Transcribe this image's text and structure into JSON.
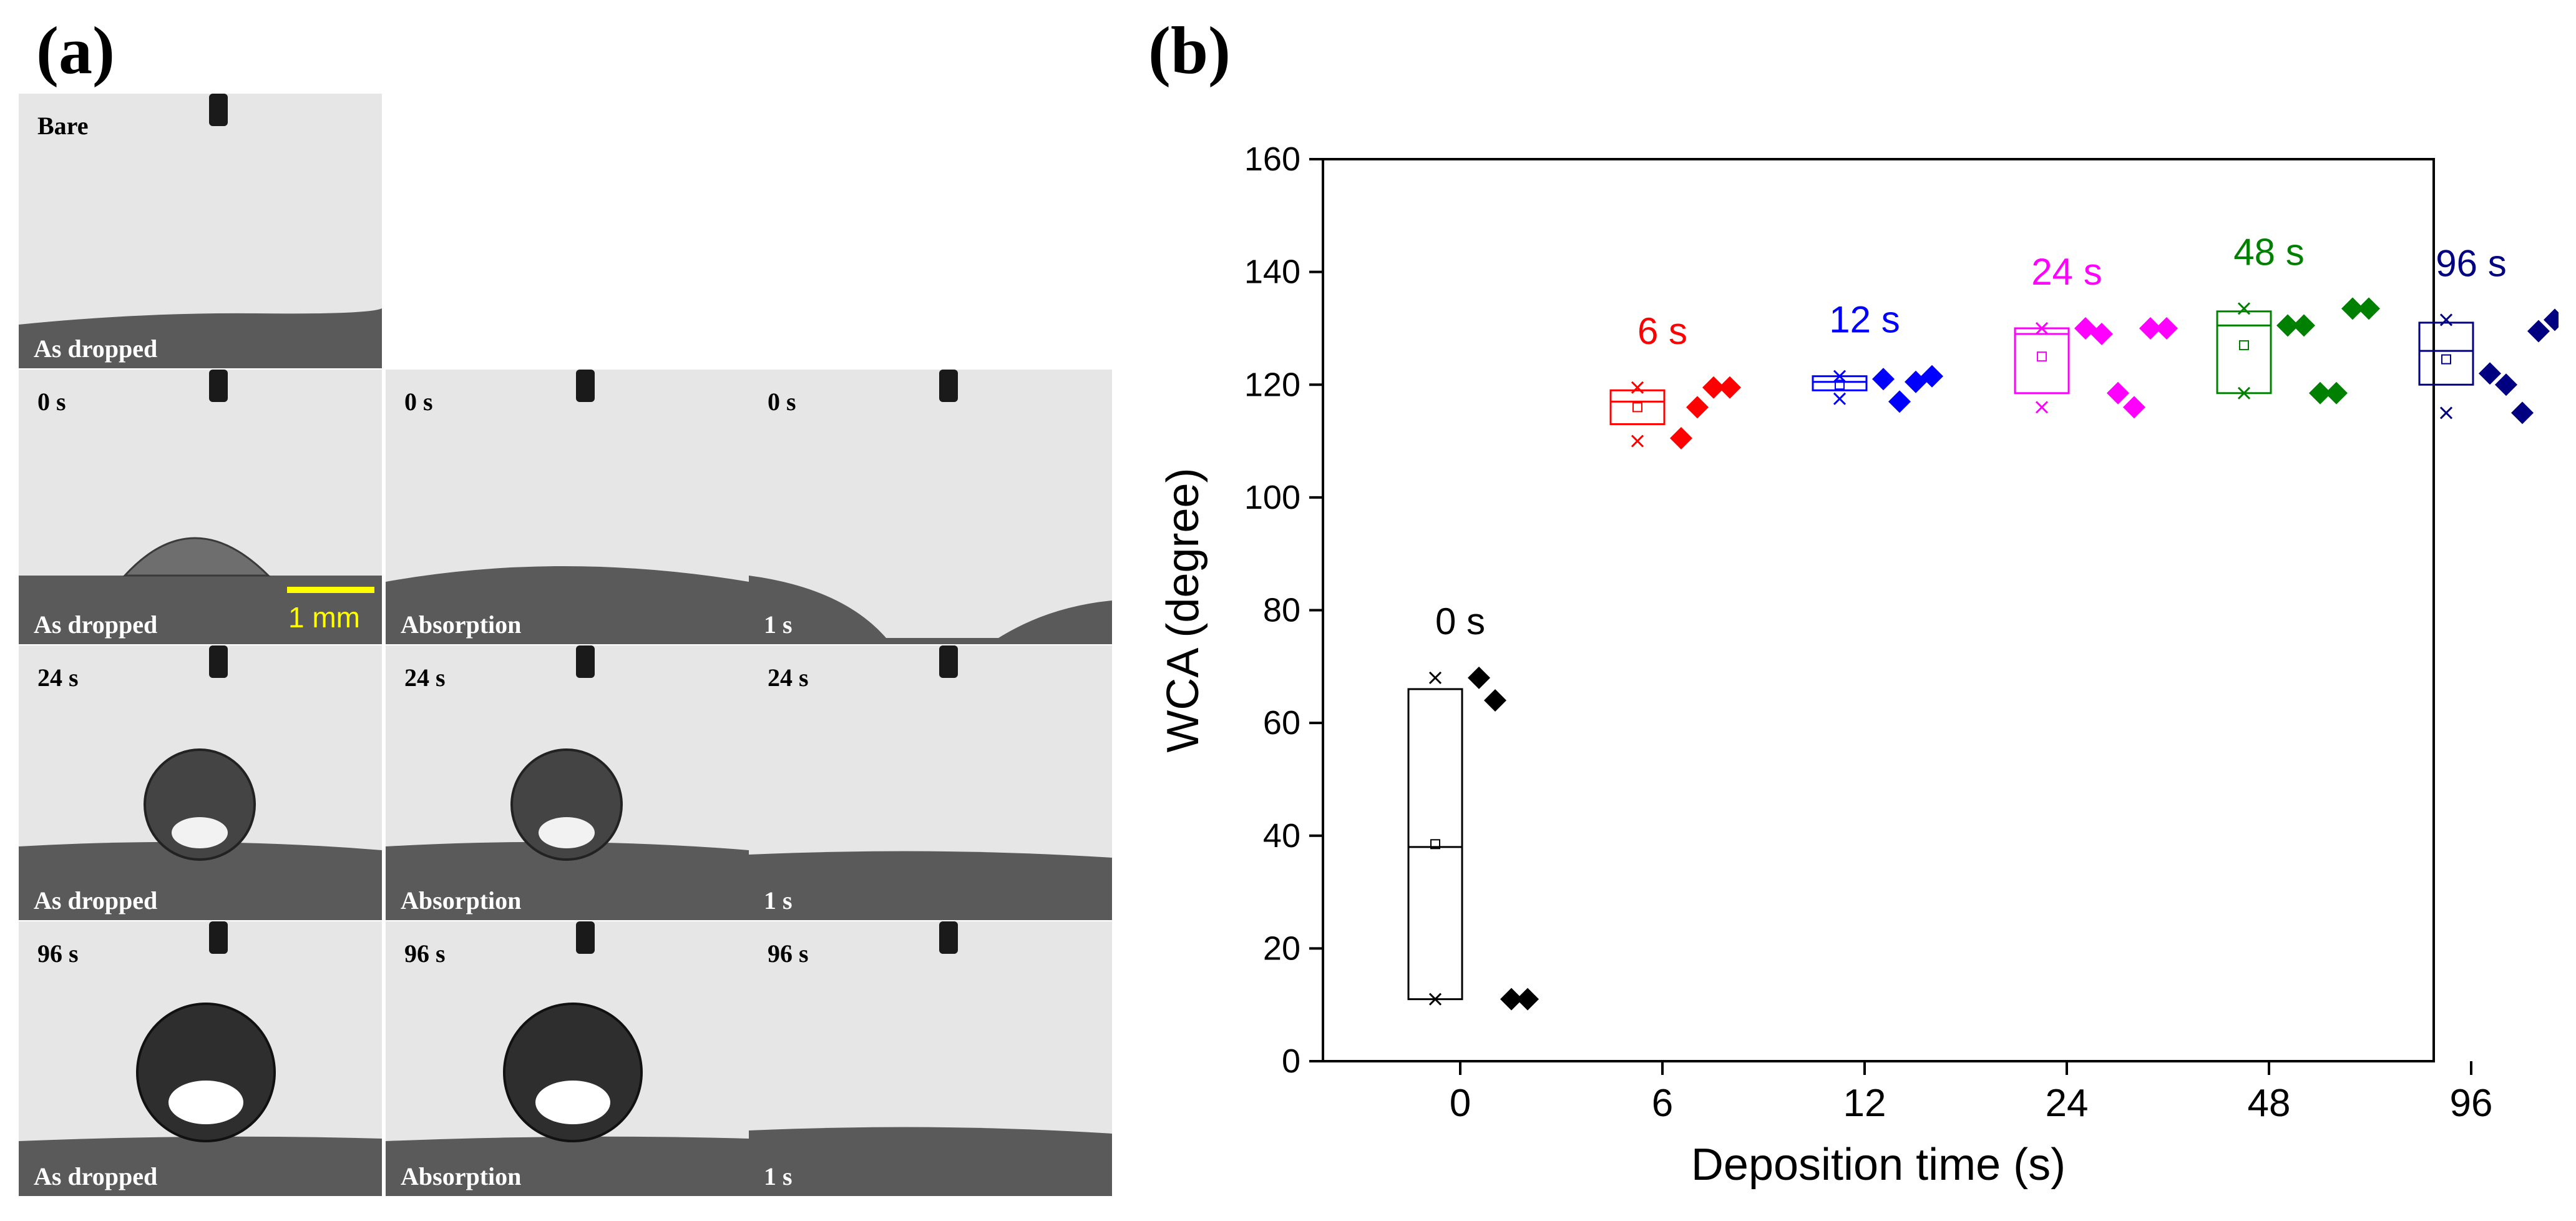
{
  "panel_a": {
    "label": "(a)",
    "scale_bar": {
      "label": "1 mm",
      "color": "#ffff00"
    },
    "tiles": [
      {
        "top": "Bare",
        "bottom": "As dropped"
      },
      {
        "top": "0 s",
        "bottom": "As dropped"
      },
      {
        "top": "0 s",
        "bottom": "Absorption"
      },
      {
        "top": "0 s",
        "bottom": "1 s"
      },
      {
        "top": "24 s",
        "bottom": "As dropped"
      },
      {
        "top": "24 s",
        "bottom": "Absorption"
      },
      {
        "top": "24 s",
        "bottom": "1 s"
      },
      {
        "top": "96 s",
        "bottom": "As dropped"
      },
      {
        "top": "96 s",
        "bottom": "Absorption"
      },
      {
        "top": "96 s",
        "bottom": "1 s"
      }
    ]
  },
  "panel_b": {
    "label": "(b)"
  },
  "chart_data": {
    "type": "box+scatter",
    "xlabel": "Deposition time (s)",
    "ylabel": "WCA (degree)",
    "ylim": [
      0,
      160
    ],
    "yticks": [
      0,
      20,
      40,
      60,
      80,
      100,
      120,
      140,
      160
    ],
    "categories": [
      "0",
      "6",
      "12",
      "24",
      "48",
      "96"
    ],
    "groups": [
      {
        "label": "0 s",
        "color": "#000000",
        "box": {
          "q1": 11,
          "median": 38,
          "q3": 66,
          "mean": 38.5,
          "min": 11,
          "max": 68
        },
        "points": [
          68,
          64,
          11,
          11
        ]
      },
      {
        "label": "6 s",
        "color": "#ff0000",
        "box": {
          "q1": 113,
          "median": 117,
          "q3": 119,
          "mean": 116,
          "min": 110,
          "max": 119.5
        },
        "points": [
          110.5,
          116,
          119.5,
          119.5
        ]
      },
      {
        "label": "12 s",
        "color": "#0000ff",
        "box": {
          "q1": 119,
          "median": 120.5,
          "q3": 121.5,
          "mean": 120,
          "min": 117.5,
          "max": 121.5
        },
        "points": [
          121,
          117,
          120.5,
          121.5
        ]
      },
      {
        "label": "24 s",
        "color": "#ff00ff",
        "box": {
          "q1": 118.5,
          "median": 129,
          "q3": 130,
          "mean": 125,
          "min": 116,
          "max": 130
        },
        "points": [
          130,
          129,
          118.5,
          116,
          130,
          130
        ]
      },
      {
        "label": "48 s",
        "color": "#008000",
        "box": {
          "q1": 118.5,
          "median": 130.5,
          "q3": 133,
          "mean": 127,
          "min": 118.5,
          "max": 133.5
        },
        "points": [
          130.5,
          130.5,
          118.5,
          118.5,
          133.5,
          133.5
        ]
      },
      {
        "label": "96 s",
        "color": "#000080",
        "box": {
          "q1": 120,
          "median": 126,
          "q3": 131,
          "mean": 124.5,
          "min": 115,
          "max": 131.5
        },
        "points": [
          122,
          120,
          115,
          129.5,
          131.5,
          131.5
        ]
      }
    ]
  }
}
